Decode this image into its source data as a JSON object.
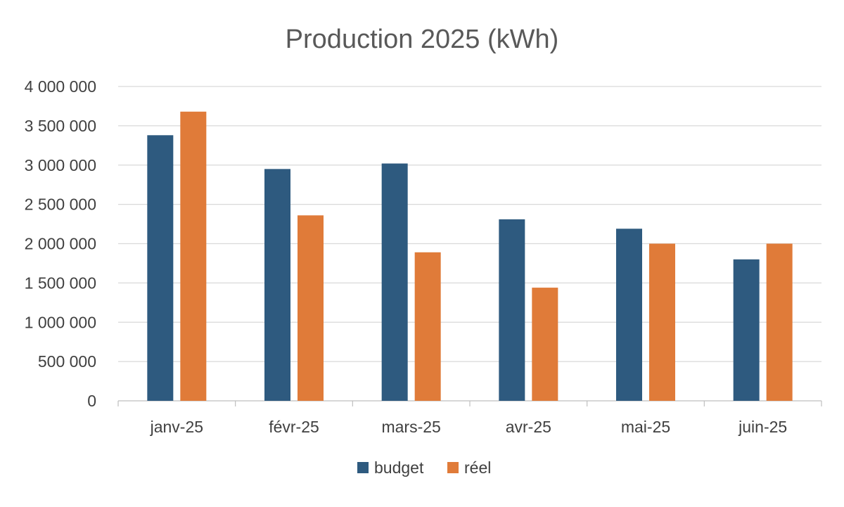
{
  "chart_data": {
    "type": "bar",
    "title": "Production 2025 (kWh)",
    "xlabel": "",
    "ylabel": "",
    "categories": [
      "janv-25",
      "févr-25",
      "mars-25",
      "avr-25",
      "mai-25",
      "juin-25"
    ],
    "series": [
      {
        "name": "budget",
        "color": "#2e5a7f",
        "values": [
          3380000,
          2950000,
          3020000,
          2310000,
          2190000,
          1800000
        ]
      },
      {
        "name": "réel",
        "color": "#e07b39",
        "values": [
          3680000,
          2360000,
          1890000,
          1440000,
          2000000,
          2000000
        ]
      }
    ],
    "ylim": [
      0,
      4000000
    ],
    "yticks": [
      0,
      500000,
      1000000,
      1500000,
      2000000,
      2500000,
      3000000,
      3500000,
      4000000
    ],
    "ytick_labels": [
      "0",
      "500 000",
      "1 000 000",
      "1 500 000",
      "2 000 000",
      "2 500 000",
      "3 000 000",
      "3 500 000",
      "4 000 000"
    ],
    "grid": true,
    "legend_position": "bottom"
  }
}
